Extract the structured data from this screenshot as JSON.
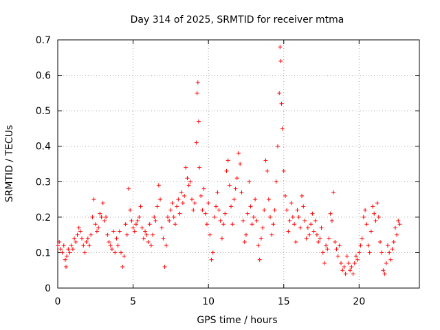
{
  "chart_data": {
    "type": "scatter",
    "title": "Day 314 of 2025, SRMTID for receiver mtma",
    "xlabel": "GPS time / hours",
    "ylabel": "SRMTID / TECUs",
    "xlim": [
      0,
      24.0
    ],
    "ylim": [
      0,
      0.7
    ],
    "xticks": [
      0,
      5,
      10,
      15,
      20
    ],
    "yticks": [
      0,
      0.1,
      0.2,
      0.3,
      0.4,
      0.5,
      0.6,
      0.7
    ],
    "xtick_labels": [
      "0",
      "5",
      "10",
      "15",
      "20"
    ],
    "ytick_labels": [
      "0",
      "0.1",
      "0.2",
      "0.3",
      "0.4",
      "0.5",
      "0.6",
      "0.7"
    ],
    "grid": true,
    "marker": "+",
    "color": "#ff0000",
    "series": [
      {
        "name": "SRMTID",
        "points": [
          [
            0.0,
            0.12
          ],
          [
            0.1,
            0.13
          ],
          [
            0.2,
            0.11
          ],
          [
            0.3,
            0.1
          ],
          [
            0.4,
            0.12
          ],
          [
            0.5,
            0.08
          ],
          [
            0.55,
            0.06
          ],
          [
            0.6,
            0.09
          ],
          [
            0.7,
            0.11
          ],
          [
            0.8,
            0.1
          ],
          [
            0.9,
            0.12
          ],
          [
            1.0,
            0.11
          ],
          [
            1.1,
            0.14
          ],
          [
            1.2,
            0.13
          ],
          [
            1.3,
            0.15
          ],
          [
            1.4,
            0.17
          ],
          [
            1.5,
            0.16
          ],
          [
            1.6,
            0.14
          ],
          [
            1.7,
            0.12
          ],
          [
            1.8,
            0.1
          ],
          [
            1.9,
            0.13
          ],
          [
            2.0,
            0.14
          ],
          [
            2.1,
            0.12
          ],
          [
            2.2,
            0.15
          ],
          [
            2.3,
            0.2
          ],
          [
            2.4,
            0.25
          ],
          [
            2.5,
            0.18
          ],
          [
            2.6,
            0.16
          ],
          [
            2.7,
            0.17
          ],
          [
            2.8,
            0.21
          ],
          [
            2.9,
            0.2
          ],
          [
            3.0,
            0.24
          ],
          [
            3.1,
            0.19
          ],
          [
            3.2,
            0.2
          ],
          [
            3.3,
            0.15
          ],
          [
            3.4,
            0.13
          ],
          [
            3.5,
            0.12
          ],
          [
            3.6,
            0.11
          ],
          [
            3.7,
            0.16
          ],
          [
            3.8,
            0.1
          ],
          [
            3.9,
            0.14
          ],
          [
            4.0,
            0.12
          ],
          [
            4.1,
            0.16
          ],
          [
            4.2,
            0.1
          ],
          [
            4.3,
            0.06
          ],
          [
            4.4,
            0.09
          ],
          [
            4.5,
            0.18
          ],
          [
            4.6,
            0.15
          ],
          [
            4.7,
            0.28
          ],
          [
            4.8,
            0.22
          ],
          [
            4.9,
            0.19
          ],
          [
            5.0,
            0.17
          ],
          [
            5.1,
            0.16
          ],
          [
            5.2,
            0.18
          ],
          [
            5.3,
            0.19
          ],
          [
            5.4,
            0.2
          ],
          [
            5.5,
            0.23
          ],
          [
            5.6,
            0.17
          ],
          [
            5.7,
            0.14
          ],
          [
            5.8,
            0.16
          ],
          [
            5.9,
            0.15
          ],
          [
            6.0,
            0.13
          ],
          [
            6.1,
            0.18
          ],
          [
            6.2,
            0.12
          ],
          [
            6.3,
            0.15
          ],
          [
            6.4,
            0.2
          ],
          [
            6.5,
            0.19
          ],
          [
            6.6,
            0.23
          ],
          [
            6.7,
            0.29
          ],
          [
            6.8,
            0.25
          ],
          [
            6.9,
            0.17
          ],
          [
            7.0,
            0.14
          ],
          [
            7.1,
            0.06
          ],
          [
            7.2,
            0.12
          ],
          [
            7.3,
            0.2
          ],
          [
            7.4,
            0.19
          ],
          [
            7.5,
            0.22
          ],
          [
            7.6,
            0.24
          ],
          [
            7.7,
            0.2
          ],
          [
            7.8,
            0.18
          ],
          [
            7.9,
            0.23
          ],
          [
            8.0,
            0.25
          ],
          [
            8.1,
            0.21
          ],
          [
            8.2,
            0.27
          ],
          [
            8.3,
            0.24
          ],
          [
            8.4,
            0.26
          ],
          [
            8.5,
            0.34
          ],
          [
            8.6,
            0.31
          ],
          [
            8.7,
            0.29
          ],
          [
            8.8,
            0.3
          ],
          [
            8.9,
            0.25
          ],
          [
            9.0,
            0.22
          ],
          [
            9.1,
            0.24
          ],
          [
            9.2,
            0.41
          ],
          [
            9.25,
            0.55
          ],
          [
            9.3,
            0.58
          ],
          [
            9.35,
            0.47
          ],
          [
            9.4,
            0.34
          ],
          [
            9.5,
            0.26
          ],
          [
            9.6,
            0.22
          ],
          [
            9.7,
            0.28
          ],
          [
            9.8,
            0.21
          ],
          [
            9.9,
            0.18
          ],
          [
            10.0,
            0.24
          ],
          [
            10.1,
            0.15
          ],
          [
            10.2,
            0.08
          ],
          [
            10.3,
            0.1
          ],
          [
            10.4,
            0.2
          ],
          [
            10.5,
            0.23
          ],
          [
            10.6,
            0.27
          ],
          [
            10.7,
            0.22
          ],
          [
            10.8,
            0.19
          ],
          [
            10.9,
            0.14
          ],
          [
            11.0,
            0.18
          ],
          [
            11.1,
            0.21
          ],
          [
            11.2,
            0.33
          ],
          [
            11.3,
            0.36
          ],
          [
            11.4,
            0.29
          ],
          [
            11.5,
            0.23
          ],
          [
            11.6,
            0.18
          ],
          [
            11.7,
            0.25
          ],
          [
            11.8,
            0.28
          ],
          [
            11.9,
            0.31
          ],
          [
            12.0,
            0.38
          ],
          [
            12.1,
            0.35
          ],
          [
            12.2,
            0.27
          ],
          [
            12.3,
            0.19
          ],
          [
            12.4,
            0.13
          ],
          [
            12.5,
            0.15
          ],
          [
            12.6,
            0.21
          ],
          [
            12.7,
            0.3
          ],
          [
            12.8,
            0.23
          ],
          [
            12.9,
            0.18
          ],
          [
            13.0,
            0.2
          ],
          [
            13.1,
            0.25
          ],
          [
            13.2,
            0.19
          ],
          [
            13.3,
            0.12
          ],
          [
            13.4,
            0.08
          ],
          [
            13.5,
            0.14
          ],
          [
            13.6,
            0.17
          ],
          [
            13.7,
            0.22
          ],
          [
            13.8,
            0.36
          ],
          [
            13.9,
            0.33
          ],
          [
            14.0,
            0.25
          ],
          [
            14.1,
            0.2
          ],
          [
            14.2,
            0.15
          ],
          [
            14.3,
            0.18
          ],
          [
            14.4,
            0.22
          ],
          [
            14.5,
            0.3
          ],
          [
            14.6,
            0.4
          ],
          [
            14.7,
            0.55
          ],
          [
            14.75,
            0.68
          ],
          [
            14.8,
            0.64
          ],
          [
            14.85,
            0.52
          ],
          [
            14.9,
            0.45
          ],
          [
            15.0,
            0.33
          ],
          [
            15.1,
            0.26
          ],
          [
            15.2,
            0.22
          ],
          [
            15.3,
            0.16
          ],
          [
            15.4,
            0.19
          ],
          [
            15.5,
            0.24
          ],
          [
            15.6,
            0.2
          ],
          [
            15.7,
            0.18
          ],
          [
            15.8,
            0.13
          ],
          [
            15.9,
            0.22
          ],
          [
            16.0,
            0.2
          ],
          [
            16.1,
            0.17
          ],
          [
            16.2,
            0.26
          ],
          [
            16.3,
            0.23
          ],
          [
            16.4,
            0.19
          ],
          [
            16.5,
            0.14
          ],
          [
            16.6,
            0.17
          ],
          [
            16.7,
            0.15
          ],
          [
            16.8,
            0.18
          ],
          [
            16.9,
            0.21
          ],
          [
            17.0,
            0.16
          ],
          [
            17.1,
            0.19
          ],
          [
            17.2,
            0.15
          ],
          [
            17.3,
            0.13
          ],
          [
            17.4,
            0.14
          ],
          [
            17.5,
            0.17
          ],
          [
            17.6,
            0.1
          ],
          [
            17.7,
            0.07
          ],
          [
            17.8,
            0.12
          ],
          [
            17.9,
            0.11
          ],
          [
            18.0,
            0.14
          ],
          [
            18.1,
            0.21
          ],
          [
            18.2,
            0.19
          ],
          [
            18.3,
            0.27
          ],
          [
            18.4,
            0.13
          ],
          [
            18.5,
            0.11
          ],
          [
            18.6,
            0.09
          ],
          [
            18.7,
            0.12
          ],
          [
            18.8,
            0.07
          ],
          [
            18.9,
            0.05
          ],
          [
            19.0,
            0.06
          ],
          [
            19.1,
            0.04
          ],
          [
            19.2,
            0.09
          ],
          [
            19.3,
            0.07
          ],
          [
            19.4,
            0.05
          ],
          [
            19.5,
            0.06
          ],
          [
            19.6,
            0.04
          ],
          [
            19.7,
            0.07
          ],
          [
            19.8,
            0.09
          ],
          [
            19.9,
            0.08
          ],
          [
            20.0,
            0.1
          ],
          [
            20.1,
            0.12
          ],
          [
            20.2,
            0.14
          ],
          [
            20.3,
            0.2
          ],
          [
            20.4,
            0.22
          ],
          [
            20.5,
            0.18
          ],
          [
            20.6,
            0.12
          ],
          [
            20.7,
            0.1
          ],
          [
            20.8,
            0.16
          ],
          [
            20.9,
            0.23
          ],
          [
            21.0,
            0.21
          ],
          [
            21.1,
            0.19
          ],
          [
            21.2,
            0.24
          ],
          [
            21.3,
            0.2
          ],
          [
            21.4,
            0.13
          ],
          [
            21.5,
            0.1
          ],
          [
            21.6,
            0.05
          ],
          [
            21.7,
            0.04
          ],
          [
            21.8,
            0.07
          ],
          [
            21.9,
            0.12
          ],
          [
            22.0,
            0.1
          ],
          [
            22.1,
            0.08
          ],
          [
            22.2,
            0.11
          ],
          [
            22.3,
            0.13
          ],
          [
            22.4,
            0.17
          ],
          [
            22.5,
            0.15
          ],
          [
            22.6,
            0.19
          ],
          [
            22.7,
            0.18
          ]
        ]
      }
    ]
  }
}
